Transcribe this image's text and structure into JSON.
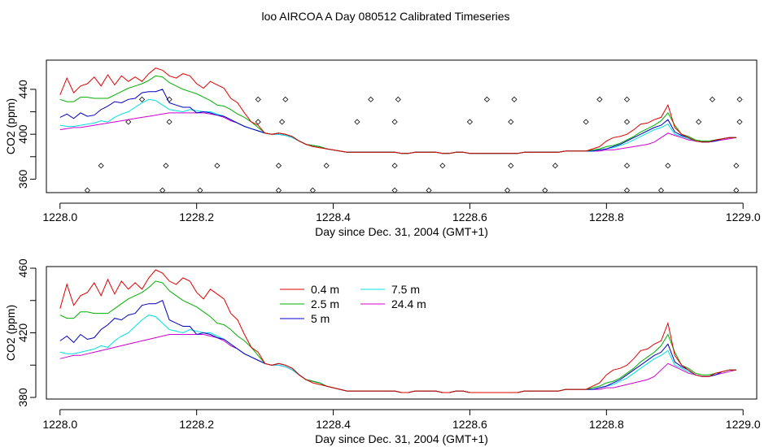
{
  "figure": {
    "title": "loo AIRCOA A  Day 080512  Calibrated Timeseries"
  },
  "colors": {
    "0.4 m": "#e00000",
    "2.5 m": "#00b000",
    "5 m": "#0000c0",
    "7.5 m": "#00e0e0",
    "24.4 m": "#d000d0"
  },
  "chart_data": [
    {
      "type": "line",
      "xlabel": "Day since Dec. 31, 2004 (GMT+1)",
      "ylabel": "CO2 (ppm)",
      "xlim": [
        1227.98,
        1229.02
      ],
      "ylim": [
        348,
        466
      ],
      "xticks": [
        "1228.0",
        "1228.2",
        "1228.4",
        "1228.6",
        "1228.8",
        "1229.0"
      ],
      "yticks": [
        "360",
        "400",
        "440"
      ],
      "x": [
        1228.0,
        1228.01,
        1228.02,
        1228.03,
        1228.04,
        1228.05,
        1228.06,
        1228.07,
        1228.08,
        1228.09,
        1228.1,
        1228.11,
        1228.12,
        1228.13,
        1228.14,
        1228.15,
        1228.16,
        1228.17,
        1228.18,
        1228.19,
        1228.2,
        1228.21,
        1228.22,
        1228.23,
        1228.24,
        1228.25,
        1228.26,
        1228.27,
        1228.28,
        1228.29,
        1228.3,
        1228.31,
        1228.32,
        1228.33,
        1228.34,
        1228.35,
        1228.36,
        1228.37,
        1228.38,
        1228.39,
        1228.4,
        1228.41,
        1228.42,
        1228.43,
        1228.44,
        1228.45,
        1228.46,
        1228.47,
        1228.48,
        1228.49,
        1228.5,
        1228.51,
        1228.52,
        1228.53,
        1228.54,
        1228.55,
        1228.56,
        1228.57,
        1228.58,
        1228.59,
        1228.6,
        1228.61,
        1228.62,
        1228.63,
        1228.64,
        1228.65,
        1228.66,
        1228.67,
        1228.68,
        1228.69,
        1228.7,
        1228.71,
        1228.72,
        1228.73,
        1228.74,
        1228.75,
        1228.76,
        1228.77,
        1228.78,
        1228.79,
        1228.8,
        1228.81,
        1228.82,
        1228.83,
        1228.84,
        1228.85,
        1228.86,
        1228.87,
        1228.88,
        1228.89,
        1228.9,
        1228.91,
        1228.92,
        1228.93,
        1228.94,
        1228.95,
        1228.96,
        1228.97,
        1228.98,
        1228.99
      ],
      "series": [
        {
          "name": "0.4 m",
          "values": [
            435,
            450,
            437,
            443,
            445,
            451,
            443,
            453,
            444,
            452,
            447,
            451,
            447,
            454,
            459,
            457,
            452,
            450,
            454,
            452,
            445,
            441,
            447,
            444,
            441,
            432,
            428,
            419,
            411,
            408,
            401,
            400,
            401,
            400,
            398,
            394,
            391,
            389,
            388,
            387,
            386,
            385,
            384,
            384,
            384,
            384,
            384,
            384,
            384,
            384,
            383,
            383,
            384,
            384,
            384,
            384,
            383,
            383,
            384,
            384,
            383,
            383,
            383,
            383,
            383,
            383,
            383,
            383,
            384,
            384,
            384,
            384,
            384,
            384,
            385,
            385,
            385,
            385,
            387,
            389,
            394,
            397,
            398,
            400,
            404,
            409,
            410,
            413,
            415,
            426,
            406,
            400,
            397,
            394,
            393,
            393,
            395,
            396,
            397,
            397
          ]
        },
        {
          "name": "2.5 m",
          "values": [
            431,
            429,
            429,
            433,
            433,
            432,
            432,
            432,
            435,
            438,
            441,
            443,
            445,
            448,
            452,
            451,
            446,
            443,
            440,
            438,
            436,
            433,
            430,
            426,
            425,
            422,
            418,
            415,
            411,
            406,
            401,
            400,
            401,
            400,
            398,
            394,
            391,
            390,
            389,
            387,
            386,
            385,
            384,
            384,
            384,
            384,
            384,
            384,
            384,
            384,
            383,
            383,
            384,
            384,
            384,
            384,
            383,
            383,
            384,
            384,
            383,
            383,
            383,
            383,
            383,
            383,
            383,
            383,
            384,
            384,
            384,
            384,
            384,
            384,
            385,
            385,
            385,
            385,
            386,
            387,
            389,
            390,
            392,
            395,
            398,
            402,
            405,
            408,
            412,
            419,
            408,
            400,
            398,
            395,
            394,
            394,
            395,
            396,
            397,
            397
          ]
        },
        {
          "name": "5 m",
          "values": [
            415,
            418,
            414,
            419,
            416,
            417,
            422,
            425,
            429,
            428,
            431,
            432,
            437,
            438,
            438,
            440,
            428,
            426,
            424,
            424,
            419,
            420,
            419,
            417,
            416,
            413,
            410,
            407,
            405,
            403,
            401,
            400,
            401,
            400,
            398,
            394,
            391,
            390,
            389,
            387,
            386,
            385,
            384,
            384,
            384,
            384,
            384,
            384,
            384,
            384,
            383,
            383,
            384,
            384,
            384,
            384,
            383,
            383,
            384,
            384,
            383,
            383,
            383,
            383,
            383,
            383,
            383,
            383,
            384,
            384,
            384,
            384,
            384,
            384,
            385,
            385,
            385,
            385,
            385,
            386,
            387,
            389,
            391,
            394,
            397,
            400,
            403,
            406,
            408,
            413,
            402,
            399,
            397,
            394,
            393,
            393,
            394,
            396,
            397,
            397
          ]
        },
        {
          "name": "7.5 m",
          "values": [
            408,
            407,
            407,
            408,
            409,
            410,
            412,
            411,
            415,
            418,
            420,
            424,
            428,
            431,
            430,
            426,
            422,
            421,
            420,
            422,
            421,
            420,
            420,
            418,
            416,
            413,
            410,
            407,
            405,
            403,
            401,
            400,
            400,
            399,
            397,
            394,
            391,
            390,
            389,
            387,
            386,
            385,
            384,
            384,
            384,
            384,
            384,
            384,
            384,
            384,
            383,
            383,
            384,
            384,
            384,
            384,
            383,
            383,
            384,
            384,
            383,
            383,
            383,
            383,
            383,
            383,
            383,
            383,
            384,
            384,
            384,
            384,
            384,
            384,
            385,
            385,
            385,
            385,
            385,
            386,
            387,
            388,
            390,
            392,
            395,
            398,
            401,
            404,
            406,
            409,
            400,
            398,
            396,
            394,
            393,
            393,
            394,
            396,
            397,
            397
          ]
        },
        {
          "name": "24.4 m",
          "values": [
            404,
            405,
            406,
            406,
            407,
            408,
            409,
            410,
            411,
            412,
            413,
            414,
            415,
            416,
            417,
            418,
            419,
            419,
            419,
            419,
            419,
            419,
            418,
            417,
            415,
            412,
            410,
            407,
            405,
            403,
            401,
            400,
            400,
            399,
            397,
            394,
            391,
            390,
            389,
            387,
            386,
            385,
            384,
            384,
            384,
            384,
            384,
            384,
            384,
            384,
            383,
            383,
            384,
            384,
            384,
            384,
            383,
            383,
            384,
            384,
            383,
            383,
            383,
            383,
            383,
            383,
            383,
            383,
            384,
            384,
            384,
            384,
            384,
            384,
            385,
            385,
            385,
            385,
            385,
            385,
            386,
            386,
            387,
            388,
            389,
            390,
            391,
            393,
            397,
            401,
            399,
            397,
            395,
            394,
            393,
            393,
            394,
            395,
            396,
            397
          ]
        }
      ],
      "scatter": {
        "x": [
          1228.04,
          1228.06,
          1228.1,
          1228.12,
          1228.15,
          1228.155,
          1228.16,
          1228.16,
          1228.205,
          1228.23,
          1228.29,
          1228.29,
          1228.32,
          1228.32,
          1228.325,
          1228.33,
          1228.37,
          1228.39,
          1228.435,
          1228.455,
          1228.49,
          1228.49,
          1228.49,
          1228.495,
          1228.54,
          1228.56,
          1228.6,
          1228.625,
          1228.655,
          1228.66,
          1228.66,
          1228.665,
          1228.71,
          1228.725,
          1228.77,
          1228.79,
          1228.83,
          1228.83,
          1228.83,
          1228.83,
          1228.88,
          1228.89,
          1228.935,
          1228.955,
          1228.99,
          1228.99,
          1228.995,
          1228.995
        ],
        "values": [
          350,
          372,
          411,
          431,
          350,
          372,
          411,
          431,
          350,
          372,
          411,
          431,
          350,
          372,
          411,
          431,
          350,
          372,
          411,
          431,
          350,
          372,
          411,
          431,
          350,
          372,
          411,
          431,
          350,
          372,
          411,
          431,
          350,
          372,
          411,
          431,
          350,
          372,
          411,
          431,
          350,
          372,
          411,
          431,
          350,
          372,
          411,
          431
        ]
      }
    },
    {
      "type": "line",
      "xlabel": "Day since Dec. 31, 2004 (GMT+1)",
      "ylabel": "CO2 (ppm)",
      "xlim": [
        1227.98,
        1229.02
      ],
      "ylim": [
        379,
        461
      ],
      "xticks": [
        "1228.0",
        "1228.2",
        "1228.4",
        "1228.6",
        "1228.8",
        "1229.0"
      ],
      "yticks": [
        "380",
        "420",
        "460"
      ],
      "legend": {
        "placement": "top-center",
        "entries": [
          "0.4 m",
          "2.5 m",
          "5 m",
          "7.5 m",
          "24.4 m"
        ]
      },
      "x_ref": "same as chart 1",
      "series_ref": "same as chart 1"
    }
  ]
}
